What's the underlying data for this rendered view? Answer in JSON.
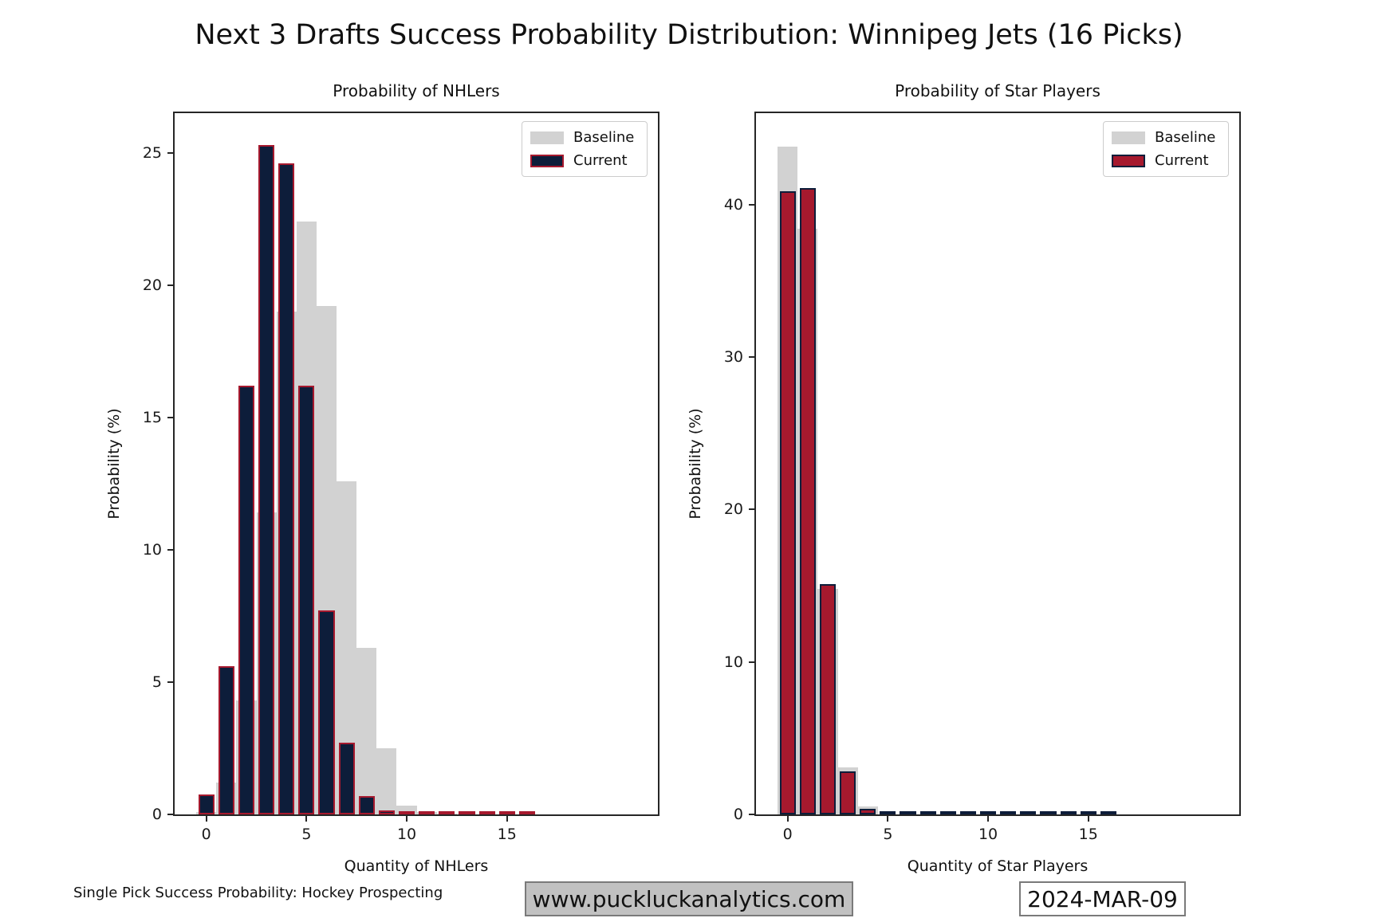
{
  "page_title": "Next 3 Drafts Success Probability Distribution: Winnipeg Jets (16 Picks)",
  "legend": {
    "baseline_label": "Baseline",
    "current_label": "Current"
  },
  "colors": {
    "navy": "#0d1d3a",
    "crimson": "#a6192e",
    "baseline_gray": "#d2d2d2",
    "frame": "#262626",
    "annotation_box_fill": "#c1c1c1",
    "annotation_box_edge": "#7a7a7a"
  },
  "footer": {
    "note": "Single Pick Success Probability: Hockey Prospecting",
    "website": "www.puckluckanalytics.com",
    "date": "2024-MAR-09"
  },
  "chart_data": [
    {
      "id": "nhlers",
      "type": "bar",
      "title": "Probability of NHLers",
      "xlabel": "Quantity of NHLers",
      "ylabel": "Probability (%)",
      "x": [
        0,
        1,
        2,
        3,
        4,
        5,
        6,
        7,
        8,
        9,
        10,
        11,
        12,
        13,
        14,
        15,
        16
      ],
      "series": [
        {
          "name": "Baseline",
          "fill": "#d2d2d2",
          "edge": null,
          "bar_width": 1.0,
          "values": [
            0.1,
            1.2,
            4.3,
            11.4,
            19.0,
            22.4,
            19.2,
            12.6,
            6.3,
            2.5,
            0.33,
            0.1,
            0.04,
            0,
            0,
            0,
            0
          ]
        },
        {
          "name": "Current",
          "fill": "#0d1d3a",
          "edge": "#a6192e",
          "bar_width": 0.8,
          "values": [
            0.75,
            5.6,
            16.2,
            25.3,
            24.6,
            16.2,
            7.7,
            2.7,
            0.7,
            0.15,
            0.06,
            0.06,
            0.06,
            0.06,
            0.06,
            0.06,
            0.06
          ]
        }
      ],
      "xlim": [
        -1.58,
        22.53
      ],
      "ylim": [
        0,
        26.5
      ],
      "xticks": [
        0,
        5,
        10,
        15
      ],
      "yticks": [
        0,
        5,
        10,
        15,
        20,
        25
      ],
      "grid": false,
      "legend_position": "upper right"
    },
    {
      "id": "star-players",
      "type": "bar",
      "title": "Probability of Star Players",
      "xlabel": "Quantity of Star Players",
      "ylabel": "Probability (%)",
      "x": [
        0,
        1,
        2,
        3,
        4,
        5,
        6,
        7,
        8,
        9,
        10,
        11,
        12,
        13,
        14,
        15,
        16
      ],
      "series": [
        {
          "name": "Baseline",
          "fill": "#d2d2d2",
          "edge": null,
          "bar_width": 1.0,
          "values": [
            43.8,
            38.4,
            14.8,
            3.1,
            0.5,
            0,
            0,
            0,
            0,
            0,
            0,
            0,
            0,
            0,
            0,
            0,
            0
          ]
        },
        {
          "name": "Current",
          "fill": "#a6192e",
          "edge": "#0d1d3a",
          "bar_width": 0.8,
          "values": [
            40.9,
            41.1,
            15.1,
            2.8,
            0.35,
            0.1,
            0.1,
            0.1,
            0.1,
            0.1,
            0.1,
            0.1,
            0.1,
            0.1,
            0.1,
            0.1,
            0.1
          ]
        }
      ],
      "xlim": [
        -1.58,
        22.53
      ],
      "ylim": [
        0,
        46
      ],
      "xticks": [
        0,
        5,
        10,
        15
      ],
      "yticks": [
        0,
        10,
        20,
        30,
        40
      ],
      "grid": false,
      "legend_position": "upper right"
    }
  ]
}
